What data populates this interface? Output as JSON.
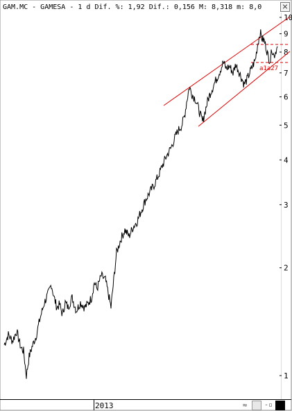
{
  "header": {
    "text": "GAM.MC - GAMESA -  1 d Dif. %: 1,92 Dif.: 0,156 M: 8,318 m: 8,0"
  },
  "chart_data": {
    "type": "line",
    "scale": "log",
    "ylim": [
      0.9,
      10.5
    ],
    "y_ticks": [
      1,
      2,
      3,
      4,
      5,
      6,
      7,
      8,
      9,
      10
    ],
    "x_labels": [
      {
        "label": "2013"
      }
    ],
    "grid": false,
    "legend": "none",
    "series": [
      {
        "color": "#000000",
        "anchors": [
          [
            0,
            1.22
          ],
          [
            6,
            1.3
          ],
          [
            12,
            1.25
          ],
          [
            18,
            1.33
          ],
          [
            24,
            1.2
          ],
          [
            28,
            1.17
          ],
          [
            32,
            1.0
          ],
          [
            36,
            1.13
          ],
          [
            40,
            1.2
          ],
          [
            46,
            1.29
          ],
          [
            52,
            1.45
          ],
          [
            58,
            1.6
          ],
          [
            64,
            1.7
          ],
          [
            68,
            1.8
          ],
          [
            72,
            1.65
          ],
          [
            76,
            1.55
          ],
          [
            80,
            1.58
          ],
          [
            84,
            1.48
          ],
          [
            88,
            1.6
          ],
          [
            92,
            1.55
          ],
          [
            98,
            1.65
          ],
          [
            104,
            1.52
          ],
          [
            110,
            1.6
          ],
          [
            116,
            1.55
          ],
          [
            120,
            1.58
          ],
          [
            126,
            1.65
          ],
          [
            130,
            1.82
          ],
          [
            134,
            1.75
          ],
          [
            140,
            1.9
          ],
          [
            146,
            1.85
          ],
          [
            150,
            1.7
          ],
          [
            154,
            1.55
          ],
          [
            158,
            1.85
          ],
          [
            162,
            2.2
          ],
          [
            168,
            2.4
          ],
          [
            174,
            2.55
          ],
          [
            180,
            2.45
          ],
          [
            186,
            2.6
          ],
          [
            192,
            2.7
          ],
          [
            198,
            2.9
          ],
          [
            204,
            3.1
          ],
          [
            210,
            3.25
          ],
          [
            216,
            3.4
          ],
          [
            222,
            3.6
          ],
          [
            228,
            3.85
          ],
          [
            234,
            4.1
          ],
          [
            240,
            4.3
          ],
          [
            246,
            4.6
          ],
          [
            250,
            4.8
          ],
          [
            256,
            5.0
          ],
          [
            260,
            5.3
          ],
          [
            263,
            5.8
          ],
          [
            267,
            6.4
          ],
          [
            271,
            6.1
          ],
          [
            276,
            5.9
          ],
          [
            281,
            5.5
          ],
          [
            286,
            5.1
          ],
          [
            290,
            5.5
          ],
          [
            294,
            5.9
          ],
          [
            298,
            6.2
          ],
          [
            304,
            6.6
          ],
          [
            310,
            7.0
          ],
          [
            316,
            7.5
          ],
          [
            320,
            7.2
          ],
          [
            325,
            7.3
          ],
          [
            330,
            7.0
          ],
          [
            334,
            7.4
          ],
          [
            338,
            7.1
          ],
          [
            342,
            6.8
          ],
          [
            346,
            6.5
          ],
          [
            350,
            6.7
          ],
          [
            354,
            7.0
          ],
          [
            358,
            7.3
          ],
          [
            362,
            7.6
          ],
          [
            366,
            8.5
          ],
          [
            369,
            9.1
          ],
          [
            372,
            8.7
          ],
          [
            375,
            8.6
          ],
          [
            378,
            8.2
          ],
          [
            381,
            7.7
          ],
          [
            384,
            7.6
          ],
          [
            386,
            8.2
          ],
          [
            389,
            7.8
          ],
          [
            392,
            8.1
          ],
          [
            394,
            8.3
          ]
        ]
      }
    ],
    "annotations": [
      {
        "text": "a1a27",
        "color": "#e00000"
      }
    ]
  },
  "footer": {
    "icons": [
      "wave-icon",
      "save-icon",
      "zoom-icon",
      "color-swatch-icon"
    ]
  }
}
